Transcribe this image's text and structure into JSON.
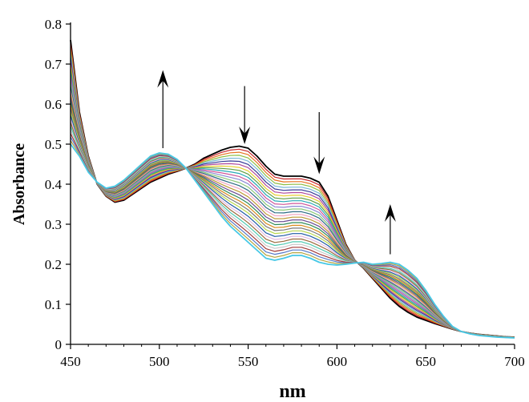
{
  "chart_data": {
    "type": "line",
    "title": "",
    "xlabel": "nm",
    "ylabel": "Absorbance",
    "xlim": [
      450,
      700
    ],
    "ylim": [
      0,
      0.8
    ],
    "xticks": [
      450,
      500,
      550,
      600,
      650,
      700
    ],
    "yticks": [
      0,
      0.1,
      0.2,
      0.3,
      0.4,
      0.5,
      0.6,
      0.7,
      0.8
    ],
    "grid": false,
    "legend": "none",
    "curve_count": 30,
    "series": [
      {
        "label_role": "first spectrum (t = 0)",
        "color": "#000000",
        "x": [
          450,
          455,
          460,
          465,
          470,
          475,
          480,
          485,
          490,
          495,
          500,
          505,
          510,
          515,
          520,
          525,
          530,
          535,
          540,
          545,
          550,
          555,
          560,
          565,
          570,
          575,
          580,
          585,
          590,
          595,
          600,
          605,
          610,
          615,
          620,
          625,
          630,
          635,
          640,
          645,
          650,
          655,
          660,
          665,
          670,
          675,
          680,
          685,
          690,
          695,
          700
        ],
        "y": [
          0.76,
          0.58,
          0.47,
          0.4,
          0.37,
          0.355,
          0.36,
          0.375,
          0.39,
          0.405,
          0.415,
          0.425,
          0.432,
          0.44,
          0.45,
          0.465,
          0.475,
          0.485,
          0.492,
          0.495,
          0.49,
          0.47,
          0.445,
          0.425,
          0.42,
          0.42,
          0.42,
          0.415,
          0.405,
          0.37,
          0.31,
          0.25,
          0.21,
          0.19,
          0.165,
          0.14,
          0.115,
          0.095,
          0.08,
          0.068,
          0.06,
          0.052,
          0.045,
          0.038,
          0.032,
          0.028,
          0.025,
          0.023,
          0.021,
          0.019,
          0.018
        ]
      },
      {
        "label_role": "final spectrum",
        "color": "#46c8e6",
        "x": [
          450,
          455,
          460,
          465,
          470,
          475,
          480,
          485,
          490,
          495,
          500,
          505,
          510,
          515,
          520,
          525,
          530,
          535,
          540,
          545,
          550,
          555,
          560,
          565,
          570,
          575,
          580,
          585,
          590,
          595,
          600,
          605,
          610,
          615,
          620,
          625,
          630,
          635,
          640,
          645,
          650,
          655,
          660,
          665,
          670,
          675,
          680,
          685,
          690,
          695,
          700
        ],
        "y": [
          0.5,
          0.47,
          0.43,
          0.405,
          0.39,
          0.395,
          0.41,
          0.43,
          0.45,
          0.47,
          0.478,
          0.475,
          0.462,
          0.44,
          0.41,
          0.38,
          0.35,
          0.32,
          0.295,
          0.275,
          0.255,
          0.235,
          0.215,
          0.21,
          0.215,
          0.222,
          0.222,
          0.215,
          0.205,
          0.2,
          0.198,
          0.2,
          0.203,
          0.205,
          0.2,
          0.202,
          0.205,
          0.2,
          0.185,
          0.165,
          0.135,
          0.1,
          0.07,
          0.045,
          0.032,
          0.026,
          0.022,
          0.02,
          0.018,
          0.017,
          0.016
        ]
      }
    ],
    "colors": [
      "#000000",
      "#c8282d",
      "#e8731e",
      "#8fbf44",
      "#79b7d6",
      "#3a3d98",
      "#b04a9c",
      "#e7cf2f",
      "#5f9e43",
      "#28a9b8",
      "#d0569a",
      "#8a8ad4",
      "#8bc879",
      "#2d6b86",
      "#f0a2bf",
      "#be9a35",
      "#6a4c93",
      "#2e8b57",
      "#d98c20",
      "#7a7a7a",
      "#b7d84d",
      "#1f5aa6",
      "#e2b8e0",
      "#9a6b3c",
      "#4ec9b0",
      "#c8c8c8",
      "#a23b3b",
      "#5578c8",
      "#b5a642",
      "#46c8e6"
    ],
    "annotations": [
      {
        "type": "arrow",
        "direction": "up",
        "x": 502,
        "y_from": 0.49,
        "y_to": 0.685
      },
      {
        "type": "arrow",
        "direction": "down",
        "x": 548,
        "y_from": 0.645,
        "y_to": 0.5
      },
      {
        "type": "arrow",
        "direction": "down",
        "x": 590,
        "y_from": 0.58,
        "y_to": 0.425
      },
      {
        "type": "arrow",
        "direction": "up",
        "x": 630,
        "y_from": 0.225,
        "y_to": 0.35
      }
    ]
  }
}
